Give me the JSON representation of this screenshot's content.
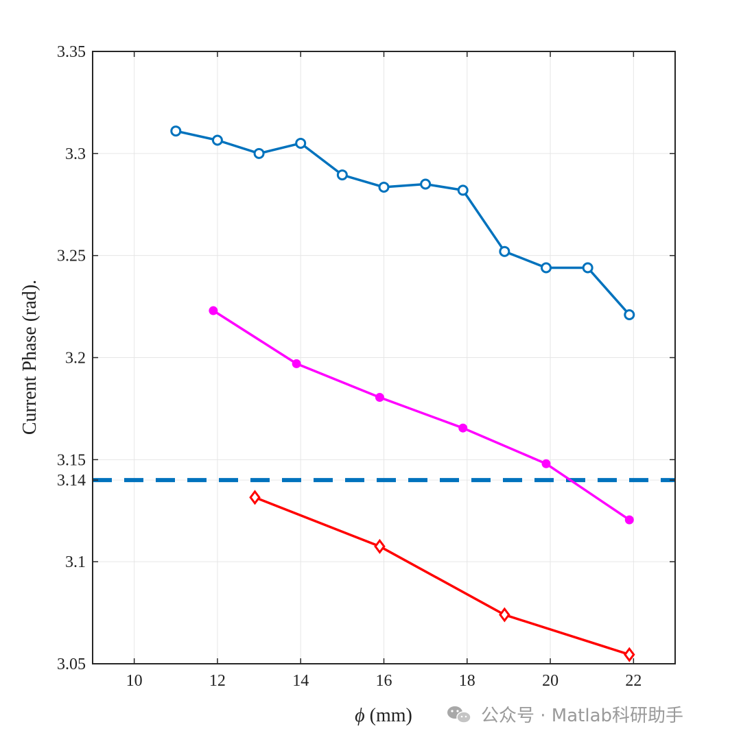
{
  "chart_data": {
    "type": "line",
    "title": "",
    "xlabel_symbol": "ϕ",
    "xlabel_unit": " (mm)",
    "ylabel": "Current Phase (rad).",
    "xlim": [
      9,
      23
    ],
    "ylim": [
      3.05,
      3.35
    ],
    "xticks": [
      10,
      12,
      14,
      16,
      18,
      20,
      22
    ],
    "xtick_labels": [
      "10",
      "12",
      "14",
      "16",
      "18",
      "20",
      "22"
    ],
    "yticks": [
      3.05,
      3.1,
      3.14,
      3.15,
      3.2,
      3.25,
      3.3,
      3.35
    ],
    "ytick_labels": [
      "3.05",
      "3.1",
      "3.14",
      "3.15",
      "3.2",
      "3.25",
      "3.3",
      "3.35"
    ],
    "grid": true,
    "series": [
      {
        "color": "#0072bd",
        "marker": "circle-open",
        "x": [
          11.0,
          12.0,
          13.0,
          14.0,
          15.0,
          16.0,
          17.0,
          17.9,
          18.9,
          19.9,
          20.9,
          21.9
        ],
        "y": [
          3.311,
          3.3065,
          3.3,
          3.305,
          3.2895,
          3.2835,
          3.285,
          3.282,
          3.252,
          3.244,
          3.244,
          3.221
        ]
      },
      {
        "color": "#ff00ff",
        "marker": "circle-filled",
        "x": [
          11.9,
          13.9,
          15.9,
          17.9,
          19.9,
          21.9
        ],
        "y": [
          3.223,
          3.197,
          3.1805,
          3.1655,
          3.148,
          3.1205
        ]
      },
      {
        "color": "#ff0000",
        "marker": "diamond-open",
        "x": [
          12.9,
          15.9,
          18.9,
          21.9
        ],
        "y": [
          3.1315,
          3.1075,
          3.074,
          3.0545
        ]
      }
    ],
    "reference_line": {
      "y": 3.14,
      "color": "#0072bd",
      "style": "dashed"
    }
  },
  "watermark": {
    "icon": "wechat-icon",
    "text": "公众号 · Matlab科研助手",
    "color": "#9a9a9a"
  }
}
